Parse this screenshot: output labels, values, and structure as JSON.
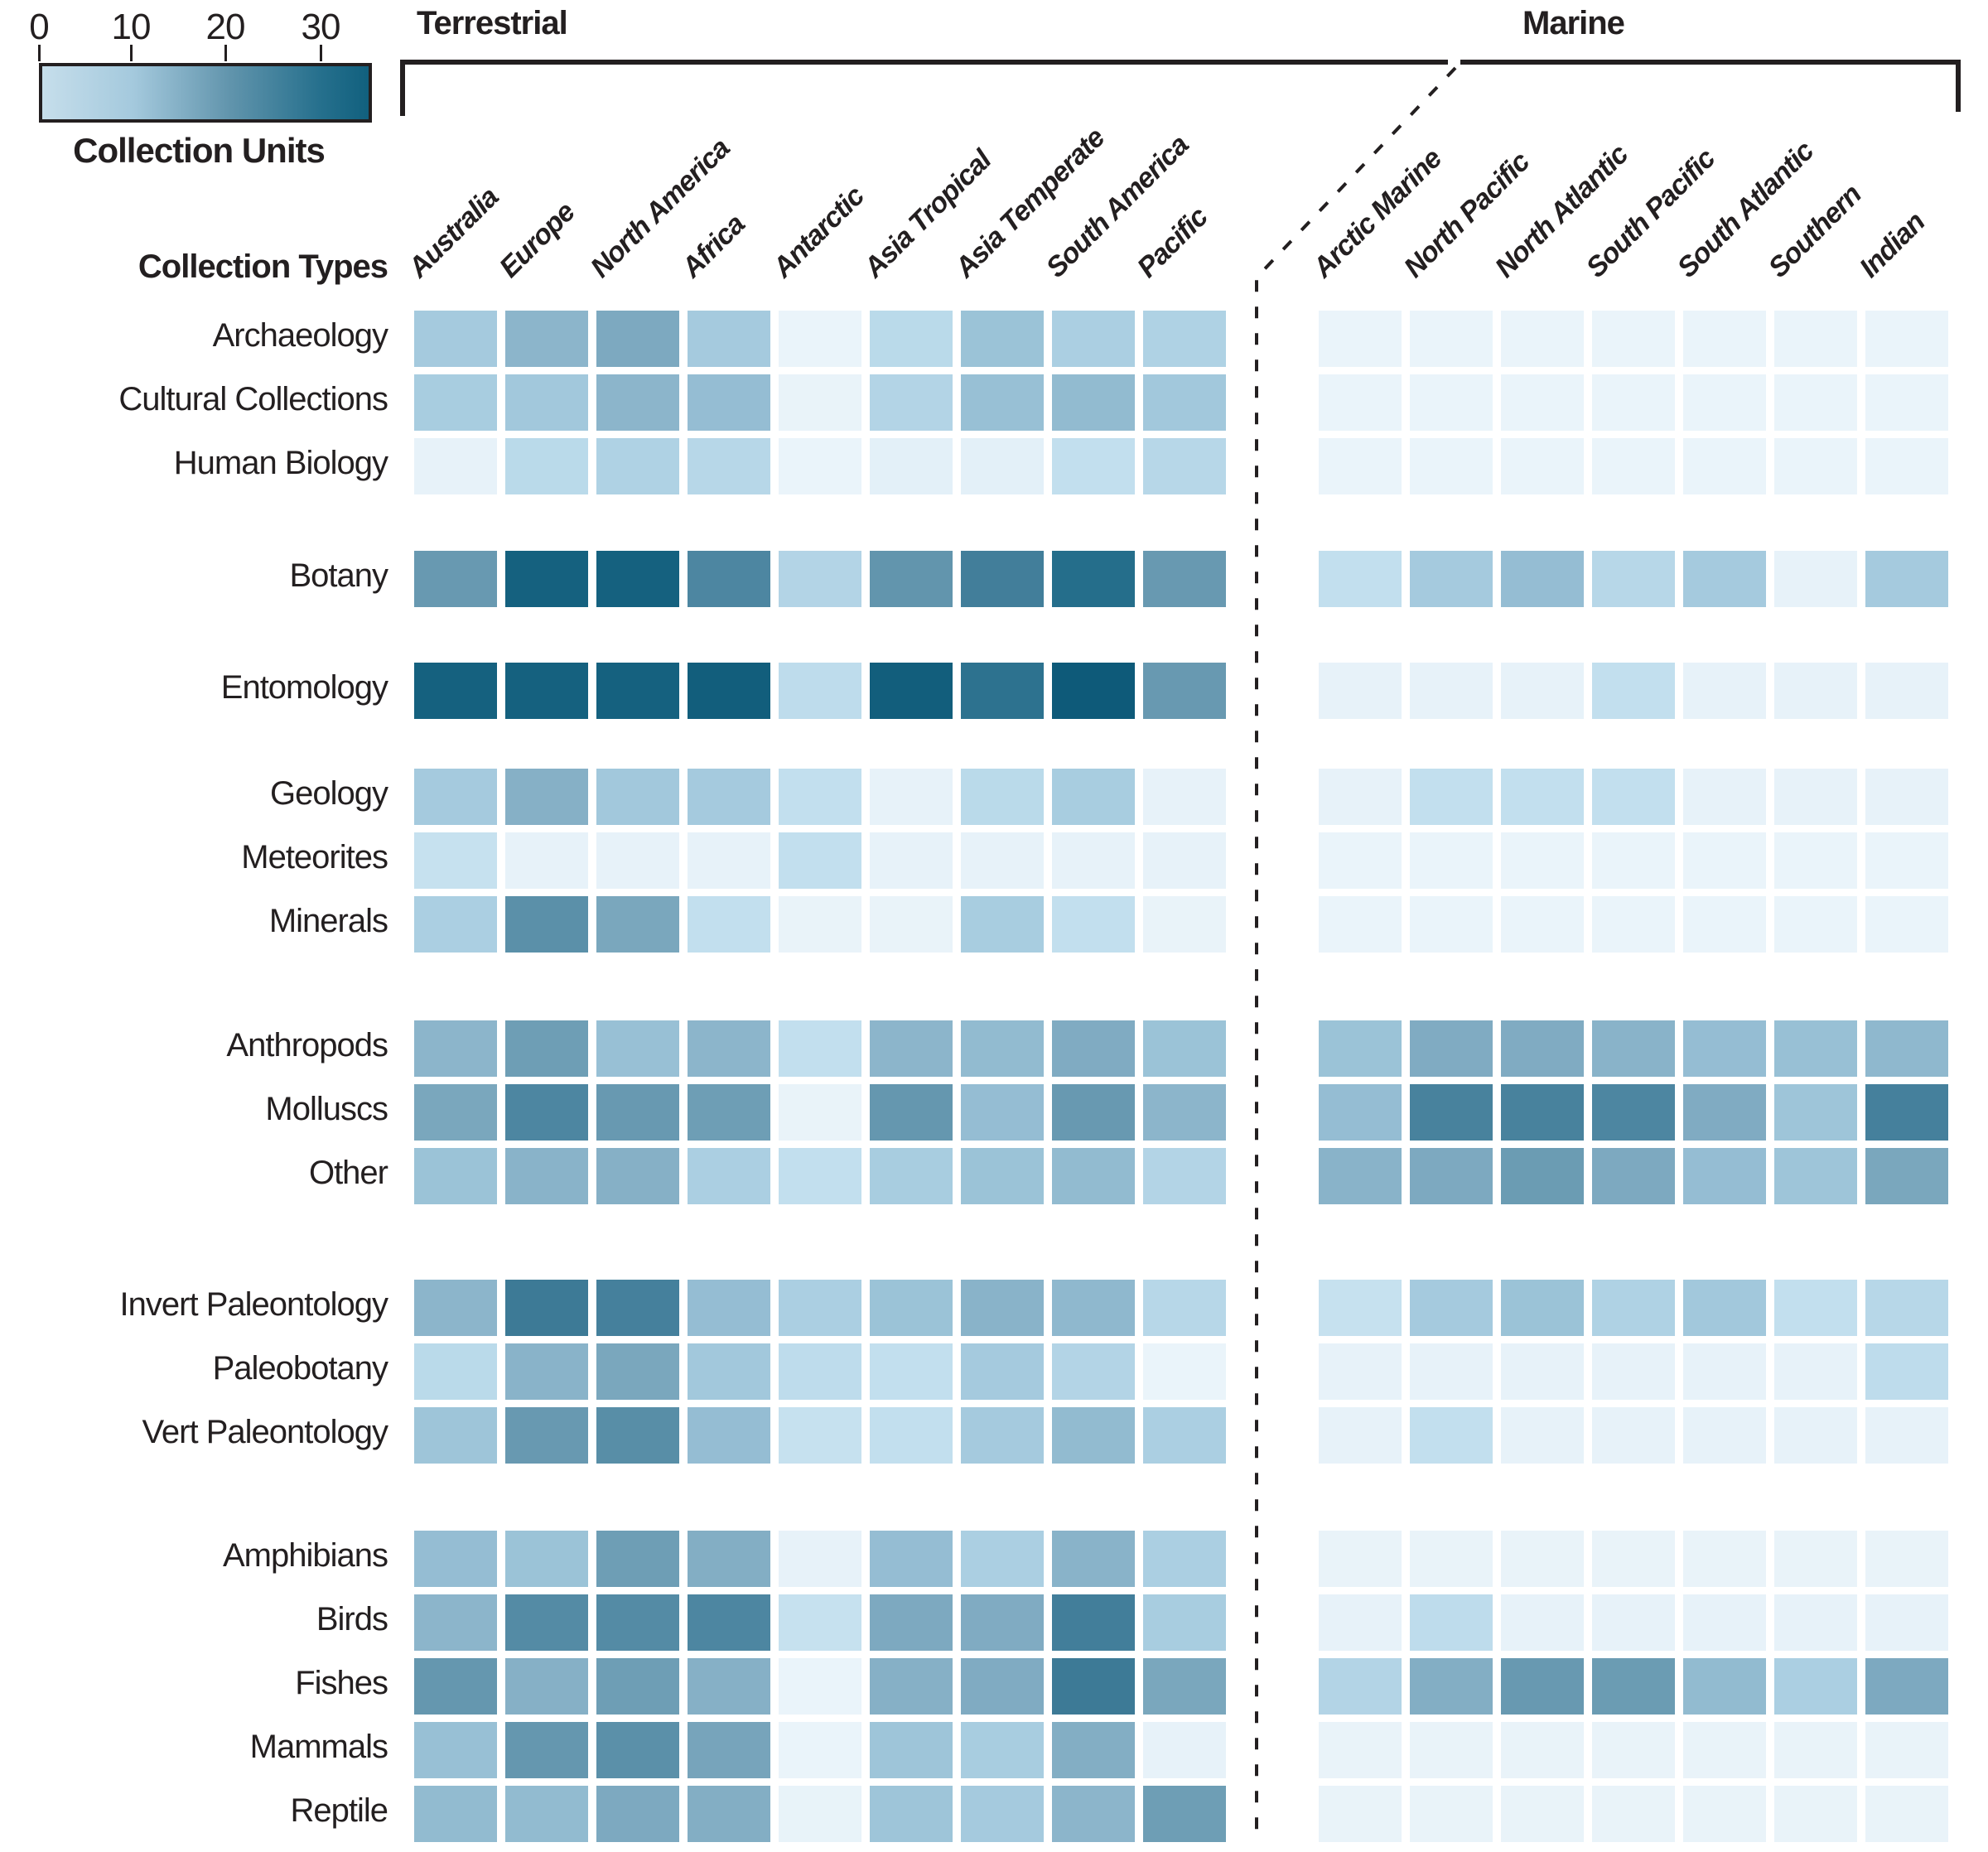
{
  "legend": {
    "title": "Collection Units",
    "ticks": [
      {
        "label": "0",
        "value": 0
      },
      {
        "label": "10",
        "value": 10
      },
      {
        "label": "20",
        "value": 20
      },
      {
        "label": "30",
        "value": 30
      }
    ],
    "min": 0,
    "max": 35,
    "gradient_start": "#c6deeb",
    "gradient_end": "#11607e"
  },
  "sections": {
    "terrestrial_label": "Terrestrial",
    "marine_label": "Marine"
  },
  "row_axis_title": "Collection Types",
  "chart_data": {
    "type": "heatmap",
    "title": "Collection Units by Collection Type and Region",
    "unit": "Collection Units",
    "value_range": [
      0,
      35
    ],
    "terrestrial_columns": [
      "Australia",
      "Europe",
      "North America",
      "Africa",
      "Antarctic",
      "Asia Tropical",
      "Asia Temperate",
      "South America",
      "Pacific"
    ],
    "marine_columns": [
      "Arctic Marine",
      "North Pacific",
      "North Atlantic",
      "South Pacific",
      "South Atlantic",
      "Southern",
      "Indian"
    ],
    "row_groups": [
      {
        "rows": [
          {
            "name": "Archaeology",
            "terrestrial": [
              10,
              14,
              16.5,
              10,
              0.5,
              7,
              11.5,
              9,
              8.5
            ],
            "marine": [
              0.5,
              0.5,
              0.5,
              0.5,
              0.5,
              0.5,
              0.5
            ]
          },
          {
            "name": "Cultural Collections",
            "terrestrial": [
              9.5,
              10.5,
              14,
              12.5,
              0.7,
              8,
              12,
              13,
              10.5
            ],
            "marine": [
              0.5,
              0.5,
              0.5,
              0.5,
              0.5,
              0.5,
              0.5
            ]
          },
          {
            "name": "Human Biology",
            "terrestrial": [
              1,
              7,
              8.5,
              7.5,
              0.5,
              1.5,
              1.5,
              6,
              7.5
            ],
            "marine": [
              0.5,
              0.5,
              0.5,
              0.5,
              0.5,
              0.5,
              0.5
            ]
          }
        ]
      },
      {
        "rows": [
          {
            "name": "Botany",
            "terrestrial": [
              20,
              33,
              33,
              24,
              8,
              21,
              26,
              30,
              20
            ],
            "marine": [
              6,
              10,
              12.5,
              7.5,
              10,
              1,
              10
            ]
          }
        ]
      },
      {
        "rows": [
          {
            "name": "Entomology",
            "terrestrial": [
              33,
              33,
              33,
              34,
              6.5,
              34,
              29,
              35,
              20
            ],
            "marine": [
              1,
              1,
              1,
              6,
              1,
              1,
              1
            ]
          }
        ]
      },
      {
        "rows": [
          {
            "name": "Geology",
            "terrestrial": [
              10,
              15,
              10.5,
              10,
              6,
              1,
              7,
              9.5,
              1
            ],
            "marine": [
              1,
              6,
              6,
              6,
              1,
              1,
              1
            ]
          },
          {
            "name": "Meteorites",
            "terrestrial": [
              5.5,
              1,
              1,
              1,
              6,
              1,
              1,
              1,
              1
            ],
            "marine": [
              0.5,
              0.5,
              0.5,
              0.5,
              0.5,
              0.5,
              0.5
            ]
          },
          {
            "name": "Minerals",
            "terrestrial": [
              9,
              22,
              17,
              6,
              0.7,
              0.7,
              9.5,
              6,
              0.7
            ],
            "marine": [
              0.5,
              0.5,
              0.5,
              0.5,
              0.5,
              0.5,
              0.5
            ]
          }
        ]
      },
      {
        "rows": [
          {
            "name": "Anthropods",
            "terrestrial": [
              14,
              19,
              12,
              14,
              6,
              14,
              13,
              16,
              11.5
            ],
            "marine": [
              11.5,
              16,
              16,
              14.5,
              12.5,
              12,
              13.5
            ]
          },
          {
            "name": "Molluscs",
            "terrestrial": [
              17,
              24,
              20,
              19,
              0.7,
              20.5,
              12.5,
              20,
              14
            ],
            "marine": [
              12.5,
              25,
              25,
              24,
              16,
              11,
              25.5
            ]
          },
          {
            "name": "Other",
            "terrestrial": [
              11.5,
              14.5,
              15,
              9,
              6,
              9.5,
              11.5,
              13,
              8
            ],
            "marine": [
              14.5,
              16.5,
              19.5,
              16.5,
              12.5,
              11,
              17
            ]
          }
        ]
      },
      {
        "rows": [
          {
            "name": "Invert Paleontology",
            "terrestrial": [
              14,
              27,
              25.5,
              12.5,
              9,
              11.5,
              14.5,
              13.5,
              7.5
            ],
            "marine": [
              5.5,
              10,
              11.5,
              8.5,
              10.5,
              6,
              7.5
            ]
          },
          {
            "name": "Paleobotany",
            "terrestrial": [
              7,
              14.5,
              17,
              10.5,
              6.5,
              6,
              10,
              8,
              0.5
            ],
            "marine": [
              1,
              1,
              1,
              1,
              1,
              1,
              6.5
            ]
          },
          {
            "name": "Vert Paleontology",
            "terrestrial": [
              11,
              20,
              22.5,
              12.5,
              5.5,
              6,
              10,
              13,
              9
            ],
            "marine": [
              1,
              6,
              1,
              1,
              1,
              1,
              1
            ]
          }
        ]
      },
      {
        "rows": [
          {
            "name": "Amphibians",
            "terrestrial": [
              12.5,
              11.5,
              19,
              15.5,
              1,
              12.5,
              9,
              14.5,
              9
            ],
            "marine": [
              0.7,
              0.7,
              0.7,
              0.7,
              0.7,
              0.7,
              0.7
            ]
          },
          {
            "name": "Birds",
            "terrestrial": [
              14,
              23,
              23,
              24,
              5.5,
              16.5,
              16,
              26,
              9.5
            ],
            "marine": [
              1,
              6.5,
              1,
              1,
              1,
              1,
              1
            ]
          },
          {
            "name": "Fishes",
            "terrestrial": [
              20.5,
              15,
              19,
              15,
              0.5,
              15,
              16,
              27,
              17
            ],
            "marine": [
              8,
              15.5,
              20,
              19.5,
              13,
              9,
              16.5
            ]
          },
          {
            "name": "Mammals",
            "terrestrial": [
              12,
              20.5,
              22,
              17.5,
              0.5,
              11,
              9.5,
              15.5,
              1
            ],
            "marine": [
              0.7,
              0.7,
              0.7,
              0.7,
              0.7,
              0.7,
              0.7
            ]
          },
          {
            "name": "Reptile",
            "terrestrial": [
              13,
              13,
              16.5,
              15.5,
              0.8,
              11,
              10,
              14,
              19
            ],
            "marine": [
              0.7,
              0.7,
              0.7,
              0.7,
              0.7,
              0.7,
              0.7
            ]
          }
        ]
      }
    ],
    "colormap_stops": [
      [
        0,
        "#eef6fb"
      ],
      [
        3,
        "#d8e9f4"
      ],
      [
        6,
        "#c2dfee"
      ],
      [
        9,
        "#abcfe2"
      ],
      [
        12,
        "#98c0d5"
      ],
      [
        15,
        "#86b0c6"
      ],
      [
        18,
        "#74a2b9"
      ],
      [
        21,
        "#6295ad"
      ],
      [
        24,
        "#4d86a1"
      ],
      [
        27,
        "#3d7a96"
      ],
      [
        30,
        "#256e8b"
      ],
      [
        33,
        "#15617f"
      ],
      [
        35,
        "#0e5a79"
      ]
    ],
    "layout_hints": {
      "legend_position": "top-left",
      "grid": false,
      "column_label_rotation_deg": 45
    }
  }
}
